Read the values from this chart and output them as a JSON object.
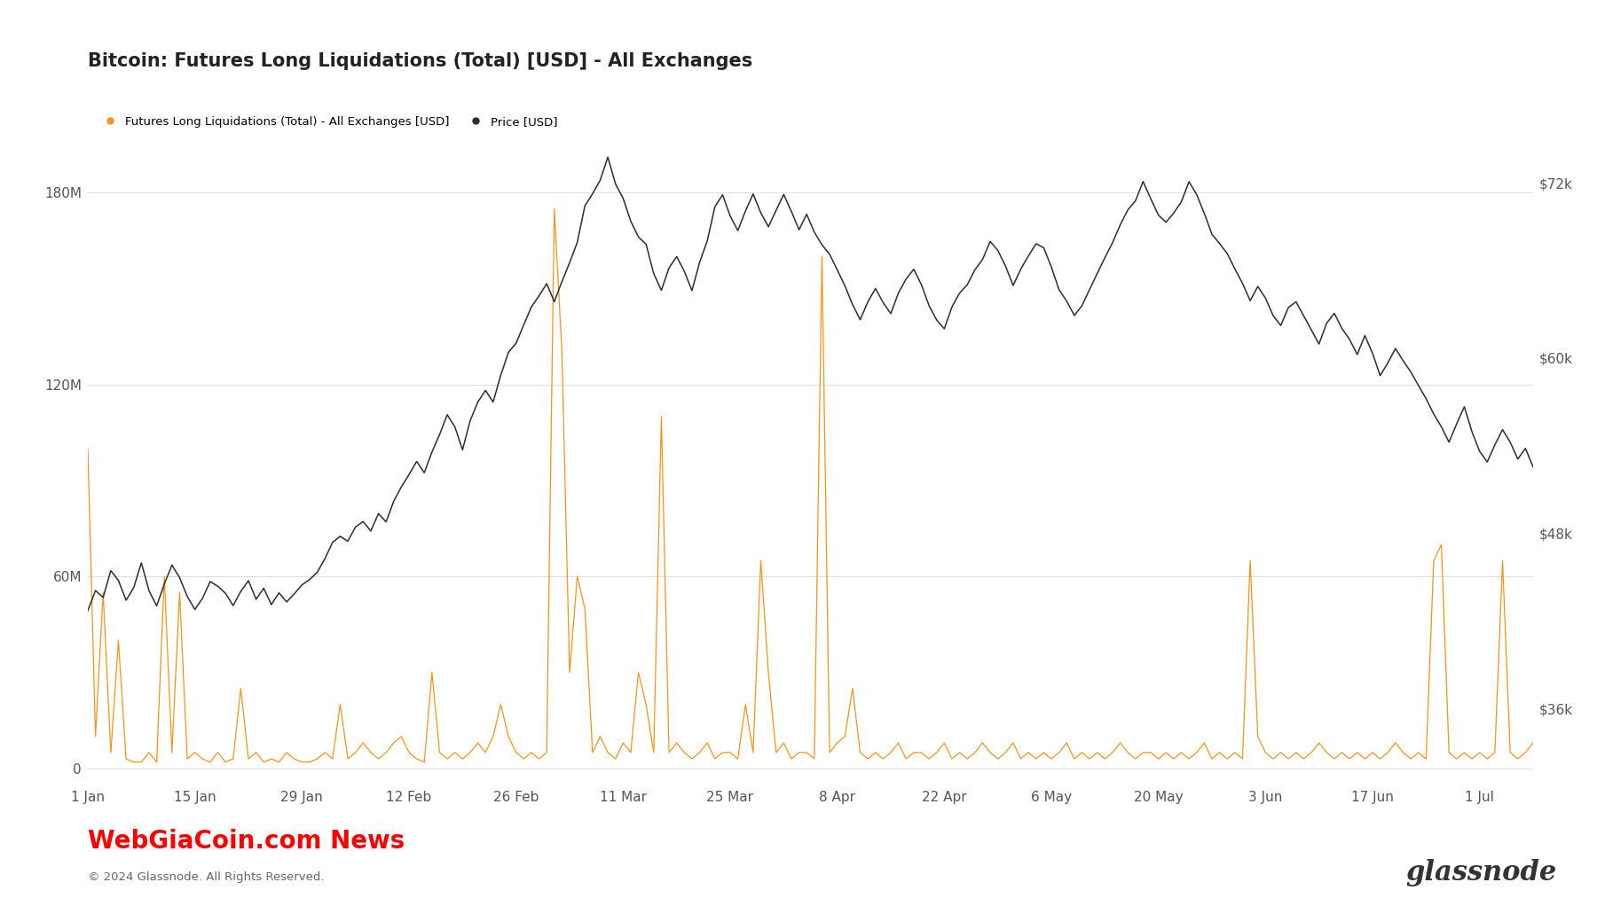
{
  "title": "Bitcoin: Futures Long Liquidations (Total) [USD] - All Exchanges",
  "legend_labels": [
    "Futures Long Liquidations (Total) - All Exchanges [USD]",
    "Price [USD]"
  ],
  "liq_color": "#F7931A",
  "price_color": "#2d2d2d",
  "background_color": "#ffffff",
  "grid_color": "#e0e0e0",
  "left_yticks": [
    0,
    60000000,
    120000000,
    180000000
  ],
  "left_yticklabels": [
    "0",
    "60M",
    "120M",
    "180M"
  ],
  "right_yticks": [
    36000,
    48000,
    60000,
    72000
  ],
  "right_yticklabels": [
    "$36k",
    "$48k",
    "$60k",
    "$72k"
  ],
  "left_ylim": [
    -4000000,
    215000000
  ],
  "right_ylim": [
    31000,
    79000
  ],
  "xlabel_dates": [
    "1 Jan",
    "15 Jan",
    "29 Jan",
    "12 Feb",
    "26 Feb",
    "11 Mar",
    "25 Mar",
    "8 Apr",
    "22 Apr",
    "6 May",
    "20 May",
    "3 Jun",
    "17 Jun",
    "1 Jul"
  ],
  "watermark_text": "WebGiaCoin.com News",
  "copyright_text": "© 2024 Glassnode. All Rights Reserved.",
  "source_text": "glassnode",
  "price_key_points": [
    [
      0,
      42500
    ],
    [
      1,
      44000
    ],
    [
      2,
      43500
    ],
    [
      3,
      45000
    ],
    [
      4,
      44500
    ],
    [
      5,
      43500
    ],
    [
      6,
      44000
    ],
    [
      7,
      45500
    ],
    [
      8,
      44000
    ],
    [
      9,
      43000
    ],
    [
      10,
      44500
    ],
    [
      11,
      46000
    ],
    [
      12,
      45000
    ],
    [
      13,
      44000
    ],
    [
      14,
      43500
    ],
    [
      15,
      44000
    ],
    [
      16,
      45000
    ],
    [
      17,
      44500
    ],
    [
      18,
      44000
    ],
    [
      19,
      43500
    ],
    [
      20,
      44000
    ],
    [
      21,
      44500
    ],
    [
      22,
      43500
    ],
    [
      23,
      44500
    ],
    [
      24,
      43500
    ],
    [
      25,
      44000
    ],
    [
      26,
      43500
    ],
    [
      27,
      44000
    ],
    [
      28,
      44500
    ],
    [
      29,
      45000
    ],
    [
      30,
      45500
    ],
    [
      31,
      46000
    ],
    [
      32,
      47000
    ],
    [
      33,
      48000
    ],
    [
      34,
      47500
    ],
    [
      35,
      48500
    ],
    [
      36,
      49000
    ],
    [
      37,
      48500
    ],
    [
      38,
      50000
    ],
    [
      39,
      49000
    ],
    [
      40,
      50000
    ],
    [
      41,
      51000
    ],
    [
      42,
      52000
    ],
    [
      43,
      53000
    ],
    [
      44,
      52500
    ],
    [
      45,
      54000
    ],
    [
      46,
      55000
    ],
    [
      47,
      56000
    ],
    [
      48,
      55000
    ],
    [
      49,
      54000
    ],
    [
      50,
      56000
    ],
    [
      51,
      57000
    ],
    [
      52,
      58000
    ],
    [
      53,
      57000
    ],
    [
      54,
      58500
    ],
    [
      55,
      60000
    ],
    [
      56,
      61000
    ],
    [
      57,
      62500
    ],
    [
      58,
      63500
    ],
    [
      59,
      64000
    ],
    [
      60,
      65000
    ],
    [
      61,
      64000
    ],
    [
      62,
      65500
    ],
    [
      63,
      67000
    ],
    [
      64,
      68000
    ],
    [
      65,
      70000
    ],
    [
      66,
      71000
    ],
    [
      67,
      72000
    ],
    [
      68,
      73500
    ],
    [
      69,
      72000
    ],
    [
      70,
      71000
    ],
    [
      71,
      69000
    ],
    [
      72,
      68000
    ],
    [
      73,
      67500
    ],
    [
      74,
      66000
    ],
    [
      75,
      65000
    ],
    [
      76,
      66000
    ],
    [
      77,
      67000
    ],
    [
      78,
      66000
    ],
    [
      79,
      65000
    ],
    [
      80,
      67000
    ],
    [
      81,
      68000
    ],
    [
      82,
      70000
    ],
    [
      83,
      71000
    ],
    [
      84,
      70000
    ],
    [
      85,
      69000
    ],
    [
      86,
      70000
    ],
    [
      87,
      71000
    ],
    [
      88,
      70000
    ],
    [
      89,
      69000
    ],
    [
      90,
      70000
    ],
    [
      91,
      71000
    ],
    [
      92,
      70000
    ],
    [
      93,
      69000
    ],
    [
      94,
      70000
    ],
    [
      95,
      69000
    ],
    [
      96,
      68000
    ],
    [
      97,
      67000
    ],
    [
      98,
      66000
    ],
    [
      99,
      65000
    ],
    [
      100,
      64000
    ],
    [
      101,
      63000
    ],
    [
      102,
      64000
    ],
    [
      103,
      65000
    ],
    [
      104,
      64000
    ],
    [
      105,
      63000
    ],
    [
      106,
      64000
    ],
    [
      107,
      65000
    ],
    [
      108,
      66000
    ],
    [
      109,
      65000
    ],
    [
      110,
      64000
    ],
    [
      111,
      63000
    ],
    [
      112,
      62000
    ],
    [
      113,
      63000
    ],
    [
      114,
      64000
    ],
    [
      115,
      65000
    ],
    [
      116,
      66000
    ],
    [
      117,
      67000
    ],
    [
      118,
      68000
    ],
    [
      119,
      67000
    ],
    [
      120,
      66000
    ],
    [
      121,
      65000
    ],
    [
      122,
      66000
    ],
    [
      123,
      67000
    ],
    [
      124,
      68000
    ],
    [
      125,
      67000
    ],
    [
      126,
      66000
    ],
    [
      127,
      65000
    ],
    [
      128,
      64000
    ],
    [
      129,
      63000
    ],
    [
      130,
      64000
    ],
    [
      131,
      65000
    ],
    [
      132,
      66000
    ],
    [
      133,
      67000
    ],
    [
      134,
      68000
    ],
    [
      135,
      69000
    ],
    [
      136,
      70000
    ],
    [
      137,
      71000
    ],
    [
      138,
      72000
    ],
    [
      139,
      71000
    ],
    [
      140,
      70000
    ],
    [
      141,
      69000
    ],
    [
      142,
      70000
    ],
    [
      143,
      71000
    ],
    [
      144,
      72000
    ],
    [
      145,
      71000
    ],
    [
      146,
      70000
    ],
    [
      147,
      69000
    ],
    [
      148,
      68000
    ],
    [
      149,
      67000
    ],
    [
      150,
      66000
    ],
    [
      151,
      65000
    ],
    [
      152,
      64000
    ],
    [
      153,
      65000
    ],
    [
      154,
      64000
    ],
    [
      155,
      63000
    ],
    [
      156,
      62000
    ],
    [
      157,
      63000
    ],
    [
      158,
      64000
    ],
    [
      159,
      63000
    ],
    [
      160,
      62000
    ],
    [
      161,
      61000
    ],
    [
      162,
      62000
    ],
    [
      163,
      63000
    ],
    [
      164,
      62000
    ],
    [
      165,
      61000
    ],
    [
      166,
      60000
    ],
    [
      167,
      61000
    ],
    [
      168,
      60000
    ],
    [
      169,
      59000
    ],
    [
      170,
      60000
    ],
    [
      171,
      61000
    ],
    [
      172,
      60000
    ],
    [
      173,
      59000
    ],
    [
      174,
      58000
    ],
    [
      175,
      57000
    ],
    [
      176,
      56000
    ],
    [
      177,
      55000
    ],
    [
      178,
      54000
    ],
    [
      179,
      55000
    ],
    [
      180,
      56000
    ],
    [
      181,
      55000
    ],
    [
      182,
      54000
    ],
    [
      183,
      53000
    ],
    [
      184,
      54000
    ],
    [
      185,
      55000
    ],
    [
      186,
      54000
    ],
    [
      187,
      53000
    ],
    [
      188,
      54000
    ],
    [
      189,
      53000
    ]
  ],
  "liq_key_points": [
    [
      0,
      100000000
    ],
    [
      1,
      10000000
    ],
    [
      2,
      55000000
    ],
    [
      3,
      5000000
    ],
    [
      4,
      40000000
    ],
    [
      5,
      3000000
    ],
    [
      6,
      2000000
    ],
    [
      7,
      2000000
    ],
    [
      8,
      5000000
    ],
    [
      9,
      2000000
    ],
    [
      10,
      60000000
    ],
    [
      11,
      5000000
    ],
    [
      12,
      55000000
    ],
    [
      13,
      3000000
    ],
    [
      14,
      5000000
    ],
    [
      15,
      3000000
    ],
    [
      16,
      2000000
    ],
    [
      17,
      5000000
    ],
    [
      18,
      2000000
    ],
    [
      19,
      3000000
    ],
    [
      20,
      25000000
    ],
    [
      21,
      3000000
    ],
    [
      22,
      5000000
    ],
    [
      23,
      2000000
    ],
    [
      24,
      3000000
    ],
    [
      25,
      2000000
    ],
    [
      26,
      5000000
    ],
    [
      27,
      3000000
    ],
    [
      28,
      2000000
    ],
    [
      29,
      2000000
    ],
    [
      30,
      3000000
    ],
    [
      31,
      5000000
    ],
    [
      32,
      3000000
    ],
    [
      33,
      20000000
    ],
    [
      34,
      3000000
    ],
    [
      35,
      5000000
    ],
    [
      36,
      8000000
    ],
    [
      37,
      5000000
    ],
    [
      38,
      3000000
    ],
    [
      39,
      5000000
    ],
    [
      40,
      8000000
    ],
    [
      41,
      10000000
    ],
    [
      42,
      5000000
    ],
    [
      43,
      3000000
    ],
    [
      44,
      2000000
    ],
    [
      45,
      30000000
    ],
    [
      46,
      5000000
    ],
    [
      47,
      3000000
    ],
    [
      48,
      5000000
    ],
    [
      49,
      3000000
    ],
    [
      50,
      5000000
    ],
    [
      51,
      8000000
    ],
    [
      52,
      5000000
    ],
    [
      53,
      10000000
    ],
    [
      54,
      20000000
    ],
    [
      55,
      10000000
    ],
    [
      56,
      5000000
    ],
    [
      57,
      3000000
    ],
    [
      58,
      5000000
    ],
    [
      59,
      3000000
    ],
    [
      60,
      5000000
    ],
    [
      61,
      175000000
    ],
    [
      62,
      130000000
    ],
    [
      63,
      30000000
    ],
    [
      64,
      60000000
    ],
    [
      65,
      50000000
    ],
    [
      66,
      5000000
    ],
    [
      67,
      10000000
    ],
    [
      68,
      5000000
    ],
    [
      69,
      3000000
    ],
    [
      70,
      8000000
    ],
    [
      71,
      5000000
    ],
    [
      72,
      30000000
    ],
    [
      73,
      20000000
    ],
    [
      74,
      5000000
    ],
    [
      75,
      110000000
    ],
    [
      76,
      5000000
    ],
    [
      77,
      8000000
    ],
    [
      78,
      5000000
    ],
    [
      79,
      3000000
    ],
    [
      80,
      5000000
    ],
    [
      81,
      8000000
    ],
    [
      82,
      3000000
    ],
    [
      83,
      5000000
    ],
    [
      84,
      5000000
    ],
    [
      85,
      3000000
    ],
    [
      86,
      20000000
    ],
    [
      87,
      5000000
    ],
    [
      88,
      65000000
    ],
    [
      89,
      30000000
    ],
    [
      90,
      5000000
    ],
    [
      91,
      8000000
    ],
    [
      92,
      3000000
    ],
    [
      93,
      5000000
    ],
    [
      94,
      5000000
    ],
    [
      95,
      3000000
    ],
    [
      96,
      160000000
    ],
    [
      97,
      5000000
    ],
    [
      98,
      8000000
    ],
    [
      99,
      10000000
    ],
    [
      100,
      25000000
    ],
    [
      101,
      5000000
    ],
    [
      102,
      3000000
    ],
    [
      103,
      5000000
    ],
    [
      104,
      3000000
    ],
    [
      105,
      5000000
    ],
    [
      106,
      8000000
    ],
    [
      107,
      3000000
    ],
    [
      108,
      5000000
    ],
    [
      109,
      5000000
    ],
    [
      110,
      3000000
    ],
    [
      111,
      5000000
    ],
    [
      112,
      8000000
    ],
    [
      113,
      3000000
    ],
    [
      114,
      5000000
    ],
    [
      115,
      3000000
    ],
    [
      116,
      5000000
    ],
    [
      117,
      8000000
    ],
    [
      118,
      5000000
    ],
    [
      119,
      3000000
    ],
    [
      120,
      5000000
    ],
    [
      121,
      8000000
    ],
    [
      122,
      3000000
    ],
    [
      123,
      5000000
    ],
    [
      124,
      3000000
    ],
    [
      125,
      5000000
    ],
    [
      126,
      3000000
    ],
    [
      127,
      5000000
    ],
    [
      128,
      8000000
    ],
    [
      129,
      3000000
    ],
    [
      130,
      5000000
    ],
    [
      131,
      3000000
    ],
    [
      132,
      5000000
    ],
    [
      133,
      3000000
    ],
    [
      134,
      5000000
    ],
    [
      135,
      8000000
    ],
    [
      136,
      5000000
    ],
    [
      137,
      3000000
    ],
    [
      138,
      5000000
    ],
    [
      139,
      5000000
    ],
    [
      140,
      3000000
    ],
    [
      141,
      5000000
    ],
    [
      142,
      3000000
    ],
    [
      143,
      5000000
    ],
    [
      144,
      3000000
    ],
    [
      145,
      5000000
    ],
    [
      146,
      8000000
    ],
    [
      147,
      3000000
    ],
    [
      148,
      5000000
    ],
    [
      149,
      3000000
    ],
    [
      150,
      5000000
    ],
    [
      151,
      3000000
    ],
    [
      152,
      65000000
    ],
    [
      153,
      10000000
    ],
    [
      154,
      5000000
    ],
    [
      155,
      3000000
    ],
    [
      156,
      5000000
    ],
    [
      157,
      3000000
    ],
    [
      158,
      5000000
    ],
    [
      159,
      3000000
    ],
    [
      160,
      5000000
    ],
    [
      161,
      8000000
    ],
    [
      162,
      5000000
    ],
    [
      163,
      3000000
    ],
    [
      164,
      5000000
    ],
    [
      165,
      3000000
    ],
    [
      166,
      5000000
    ],
    [
      167,
      3000000
    ],
    [
      168,
      5000000
    ],
    [
      169,
      3000000
    ],
    [
      170,
      5000000
    ],
    [
      171,
      8000000
    ],
    [
      172,
      5000000
    ],
    [
      173,
      3000000
    ],
    [
      174,
      5000000
    ],
    [
      175,
      3000000
    ],
    [
      176,
      65000000
    ],
    [
      177,
      70000000
    ],
    [
      178,
      5000000
    ],
    [
      179,
      3000000
    ],
    [
      180,
      5000000
    ],
    [
      181,
      3000000
    ],
    [
      182,
      5000000
    ],
    [
      183,
      3000000
    ],
    [
      184,
      5000000
    ],
    [
      185,
      65000000
    ],
    [
      186,
      5000000
    ],
    [
      187,
      3000000
    ],
    [
      188,
      5000000
    ],
    [
      189,
      8000000
    ]
  ]
}
